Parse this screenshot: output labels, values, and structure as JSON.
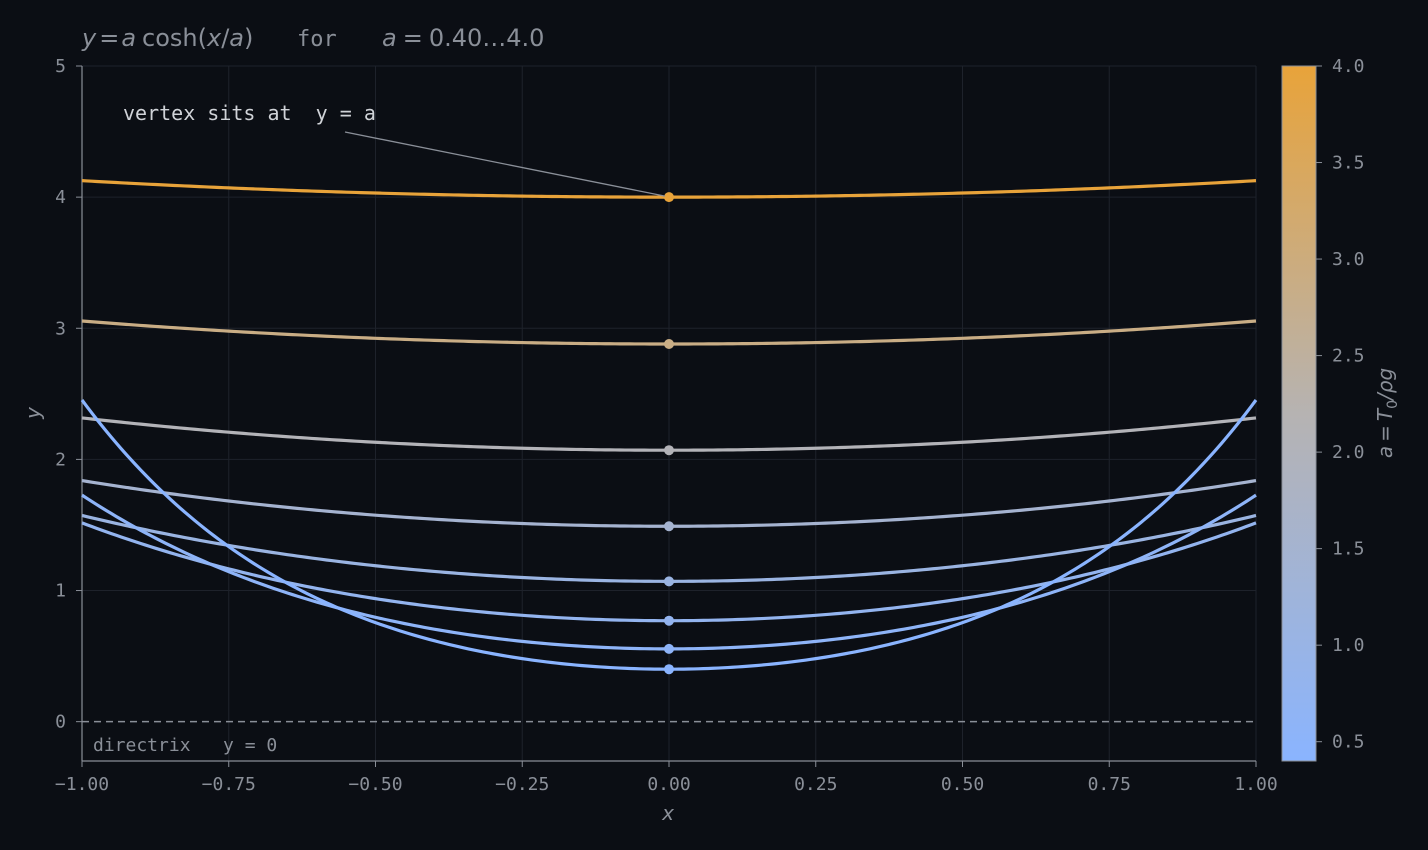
{
  "title": {
    "formula_y": "y",
    "formula_eq": "=",
    "formula_a": "a",
    "formula_cosh": "cosh(",
    "formula_x": "x",
    "formula_slash": "/",
    "formula_a2": "a",
    "formula_close": ")",
    "word_for": "for",
    "range_a": "a",
    "range_eq": "=",
    "range_vals": "0.40…4.0"
  },
  "annotation": {
    "vertex_text": "vertex sits at  y = a",
    "directrix_text": "directrix   y = 0"
  },
  "colorbar": {
    "label_a": "a",
    "label_eq": "=",
    "label_T": "T",
    "label_sub": "0",
    "label_rest": "/ρg",
    "ticks": [
      "0.5",
      "1.0",
      "1.5",
      "2.0",
      "2.5",
      "3.0",
      "3.5",
      "4.0"
    ],
    "tick_values": [
      0.5,
      1.0,
      1.5,
      2.0,
      2.5,
      3.0,
      3.5,
      4.0
    ],
    "min": 0.4,
    "max": 4.0,
    "color_low": "#8ab4ff",
    "color_mid": "#b6b3b2",
    "color_high": "#e8a33a"
  },
  "chart_data": {
    "type": "line",
    "title": "y = a cosh(x/a)   for   a = 0.40…4.0",
    "xlabel": "x",
    "ylabel": "y",
    "xlim": [
      -1.0,
      1.0
    ],
    "ylim": [
      -0.3,
      5.0
    ],
    "x_ticks": [
      "−1.00",
      "−0.75",
      "−0.50",
      "−0.25",
      "0.00",
      "0.25",
      "0.50",
      "0.75",
      "1.00"
    ],
    "x_tick_values": [
      -1.0,
      -0.75,
      -0.5,
      -0.25,
      0.0,
      0.25,
      0.5,
      0.75,
      1.0
    ],
    "y_ticks": [
      "0",
      "1",
      "2",
      "3",
      "4",
      "5"
    ],
    "y_tick_values": [
      0,
      1,
      2,
      3,
      4,
      5
    ],
    "grid": true,
    "function": "y = a*cosh(x/a)",
    "a_values": [
      0.4,
      0.555,
      0.77,
      1.07,
      1.49,
      2.07,
      2.88,
      4.0
    ],
    "vertex_x": 0.0,
    "directrix_y": 0,
    "colors": {
      "background": "#0b0e14",
      "axis": "#8a8f98",
      "grid": "#1e222b",
      "text": "#8a8f98",
      "annotation_text": "#d0d3d8"
    }
  }
}
